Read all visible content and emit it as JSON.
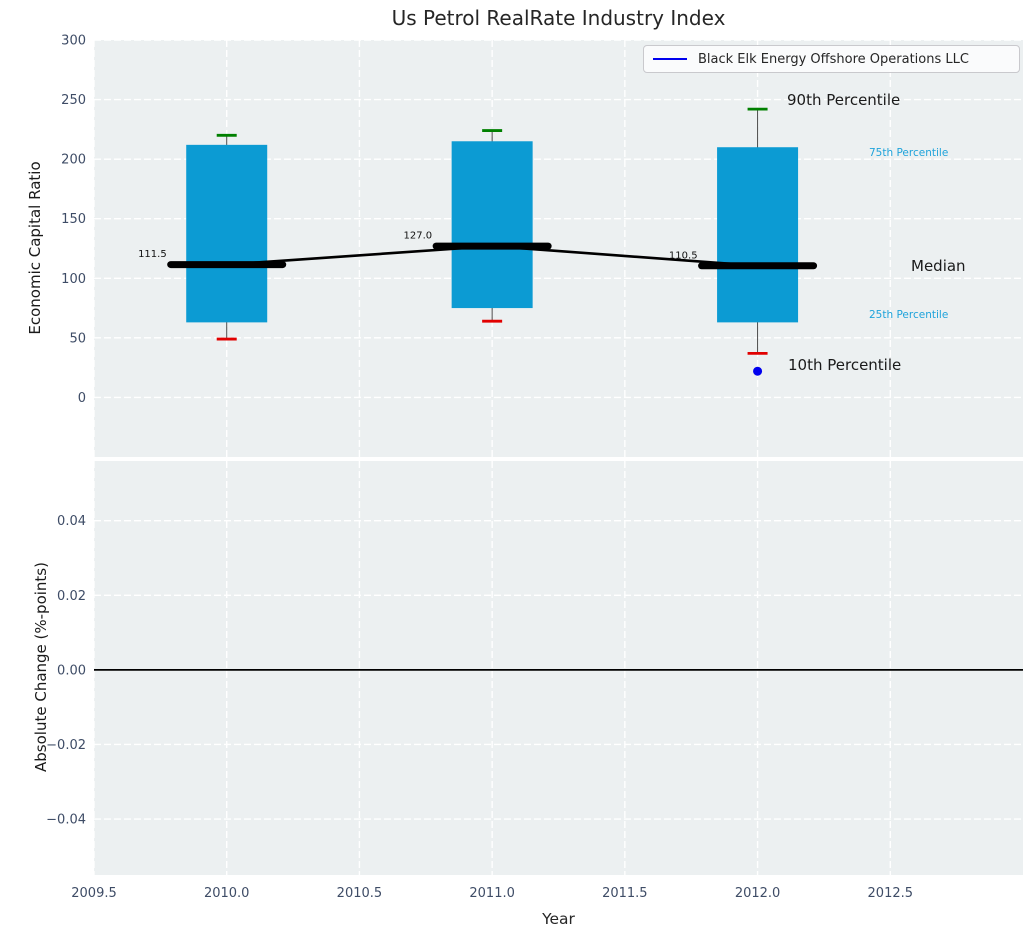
{
  "title": "Us Petrol RealRate Industry Index",
  "legend": {
    "label": "Black Elk Energy Offshore Operations LLC"
  },
  "percentile_labels": {
    "p90": "90th Percentile",
    "p75": "75th Percentile",
    "median": "Median",
    "p25": "25th Percentile",
    "p10": "10th Percentile"
  },
  "colors": {
    "panel_bg": "#ecf0f1",
    "grid": "#ffffff",
    "bar": "#0c9bd3",
    "p90_tick": "#008000",
    "p10_tick": "#e10000",
    "median": "#000000",
    "whisker": "#4a4a4a",
    "company": "#0000ee",
    "tick_text": "#3e4c66",
    "pct_small_text": "#1fa3db",
    "zero_line": "#000000"
  },
  "chart_data": [
    {
      "type": "bar",
      "subtype": "percentile-box",
      "title": "Us Petrol RealRate Industry Index",
      "ylabel": "Economic Capital Ratio",
      "xlabel": "",
      "ylim": [
        -50,
        300
      ],
      "yticks": [
        300,
        250,
        200,
        150,
        100,
        50,
        0
      ],
      "xlim": [
        2009.5,
        2013.0
      ],
      "xticks": [
        2009.5,
        2010.0,
        2010.5,
        2011.0,
        2011.5,
        2012.0,
        2012.5
      ],
      "grid": true,
      "legend_position": "upper right",
      "categories": [
        2010,
        2011,
        2012
      ],
      "series": [
        {
          "name": "90th Percentile",
          "values": [
            220,
            224,
            242
          ]
        },
        {
          "name": "75th Percentile",
          "values": [
            212,
            215,
            210
          ]
        },
        {
          "name": "Median",
          "values": [
            111.5,
            127.0,
            110.5
          ]
        },
        {
          "name": "25th Percentile",
          "values": [
            63,
            75,
            63
          ]
        },
        {
          "name": "10th Percentile",
          "values": [
            49,
            64,
            37
          ]
        }
      ],
      "median_value_labels": [
        "111.5",
        "127.0",
        "110.5"
      ],
      "company_series": {
        "name": "Black Elk Energy Offshore Operations LLC",
        "points": [
          {
            "x": 2012,
            "y": 22
          }
        ]
      }
    },
    {
      "type": "line",
      "title": "",
      "ylabel": "Absolute Change (%-points)",
      "xlabel": "Year",
      "ylim": [
        -0.055,
        0.056
      ],
      "yticks": [
        0.04,
        0.02,
        0.0,
        -0.02,
        -0.04
      ],
      "ytick_labels": [
        "0.04",
        "0.02",
        "0.00",
        "−0.02",
        "−0.04"
      ],
      "xlim": [
        2009.5,
        2013.0
      ],
      "xticks": [
        2009.5,
        2010.0,
        2010.5,
        2011.0,
        2011.5,
        2012.0,
        2012.5
      ],
      "xtick_labels": [
        "2009.5",
        "2010.0",
        "2010.5",
        "2011.0",
        "2011.5",
        "2012.0",
        "2012.5"
      ],
      "grid": true,
      "zero_line": 0.0,
      "series": []
    }
  ]
}
